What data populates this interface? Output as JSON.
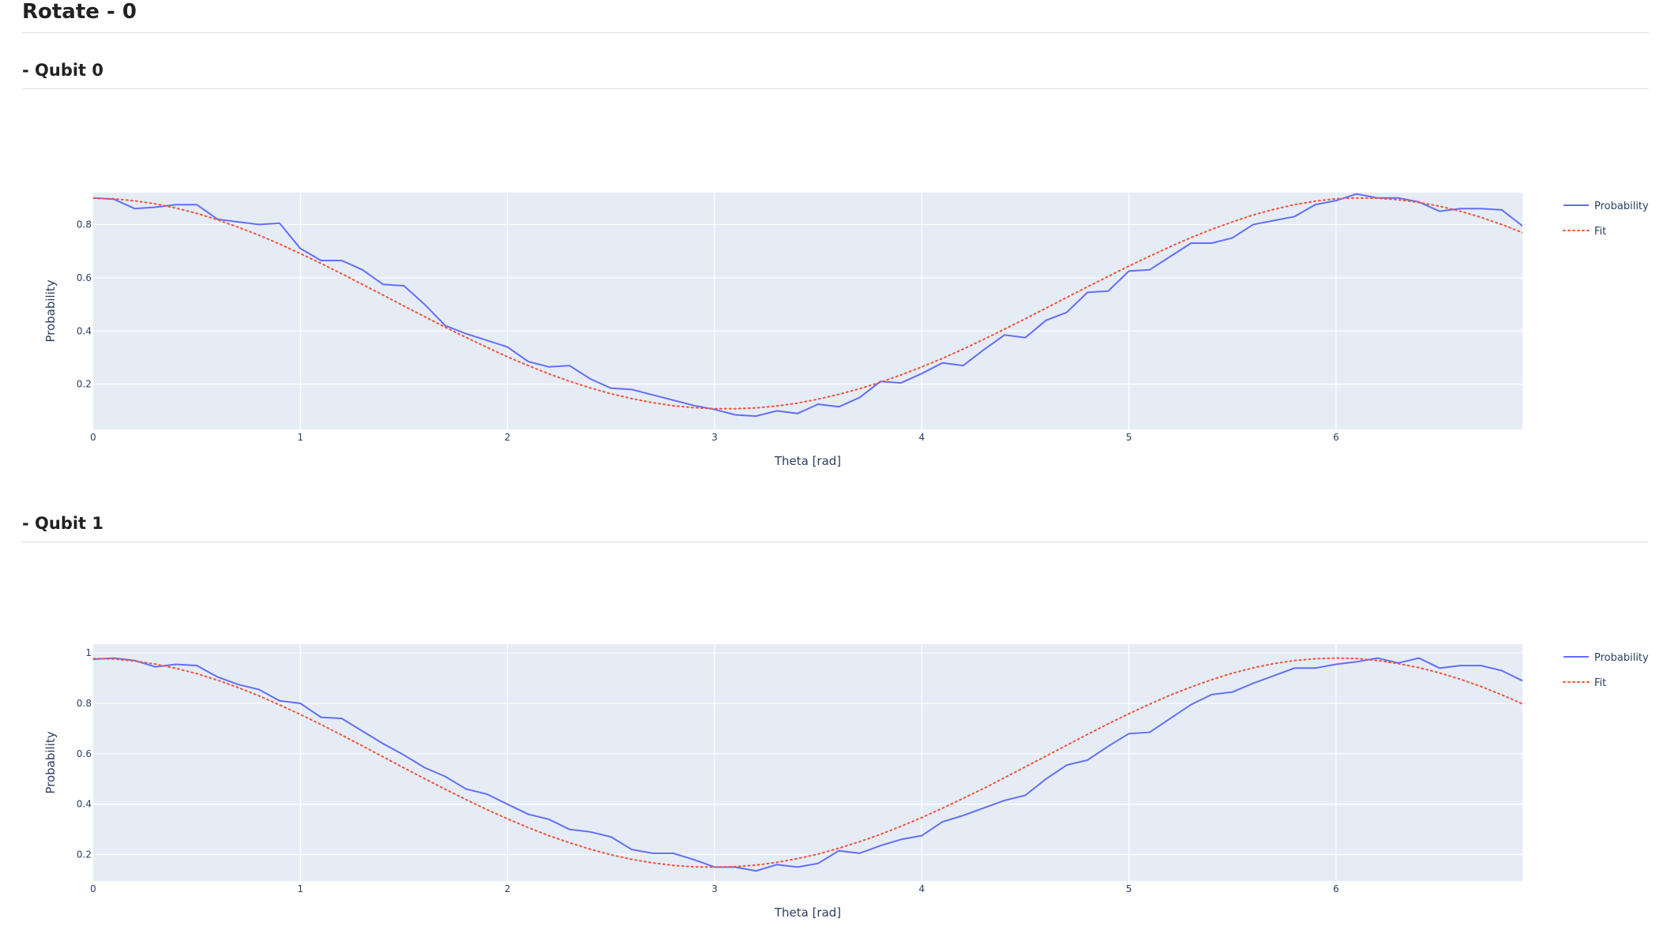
{
  "page": {
    "title": "Rotate - 0"
  },
  "sections": [
    {
      "title": "- Qubit 0"
    },
    {
      "title": "- Qubit 1"
    }
  ],
  "colors": {
    "plot_bg": "#e5ecf6",
    "grid": "#ffffff",
    "probability": "#636efa",
    "fit": "#ef553b",
    "axis_text": "#2a3f5f"
  },
  "chart_data": [
    {
      "type": "line",
      "title": "",
      "xlabel": "Theta [rad]",
      "ylabel": "Probability",
      "xlim": [
        0,
        6.9
      ],
      "ylim": [
        0.03,
        0.92
      ],
      "xticks": [
        0,
        1,
        2,
        3,
        4,
        5,
        6
      ],
      "yticks": [
        0.2,
        0.4,
        0.6,
        0.8
      ],
      "ytick_labels": [
        "0.2",
        "0.4",
        "0.6",
        "0.8"
      ],
      "grid": true,
      "legend_position": "top-right",
      "series": [
        {
          "name": "Probability",
          "style": "solid",
          "x": [
            0,
            0.1,
            0.2,
            0.3,
            0.4,
            0.5,
            0.6,
            0.7,
            0.8,
            0.9,
            1.0,
            1.1,
            1.2,
            1.3,
            1.4,
            1.5,
            1.6,
            1.7,
            1.8,
            1.9,
            2.0,
            2.1,
            2.2,
            2.3,
            2.4,
            2.5,
            2.6,
            2.7,
            2.8,
            2.9,
            3.0,
            3.1,
            3.2,
            3.3,
            3.4,
            3.5,
            3.6,
            3.7,
            3.8,
            3.9,
            4.0,
            4.1,
            4.2,
            4.3,
            4.4,
            4.5,
            4.6,
            4.7,
            4.8,
            4.9,
            5.0,
            5.1,
            5.2,
            5.3,
            5.4,
            5.5,
            5.6,
            5.7,
            5.8,
            5.9,
            6.0,
            6.1,
            6.2,
            6.3,
            6.4,
            6.5,
            6.6,
            6.7,
            6.8,
            6.9
          ],
          "y": [
            0.9,
            0.895,
            0.86,
            0.865,
            0.875,
            0.875,
            0.82,
            0.81,
            0.8,
            0.805,
            0.71,
            0.665,
            0.665,
            0.63,
            0.575,
            0.57,
            0.5,
            0.42,
            0.39,
            0.365,
            0.34,
            0.285,
            0.265,
            0.27,
            0.22,
            0.185,
            0.18,
            0.16,
            0.14,
            0.12,
            0.105,
            0.085,
            0.08,
            0.1,
            0.09,
            0.125,
            0.115,
            0.15,
            0.21,
            0.205,
            0.24,
            0.28,
            0.27,
            0.33,
            0.385,
            0.375,
            0.44,
            0.47,
            0.545,
            0.55,
            0.625,
            0.63,
            0.68,
            0.73,
            0.73,
            0.75,
            0.8,
            0.815,
            0.83,
            0.875,
            0.89,
            0.915,
            0.9,
            0.9,
            0.885,
            0.85,
            0.86,
            0.86,
            0.855,
            0.795
          ]
        },
        {
          "name": "Fit",
          "style": "dotted",
          "x": [
            0,
            0.1,
            0.2,
            0.3,
            0.4,
            0.5,
            0.6,
            0.7,
            0.8,
            0.9,
            1.0,
            1.1,
            1.2,
            1.3,
            1.4,
            1.5,
            1.6,
            1.7,
            1.8,
            1.9,
            2.0,
            2.1,
            2.2,
            2.3,
            2.4,
            2.5,
            2.6,
            2.7,
            2.8,
            2.9,
            3.0,
            3.1,
            3.2,
            3.3,
            3.4,
            3.5,
            3.6,
            3.7,
            3.8,
            3.9,
            4.0,
            4.1,
            4.2,
            4.3,
            4.4,
            4.5,
            4.6,
            4.7,
            4.8,
            4.9,
            5.0,
            5.1,
            5.2,
            5.3,
            5.4,
            5.5,
            5.6,
            5.7,
            5.8,
            5.9,
            6.0,
            6.1,
            6.2,
            6.3,
            6.4,
            6.5,
            6.6,
            6.7,
            6.8,
            6.9
          ],
          "y": [
            0.899,
            0.897,
            0.889,
            0.878,
            0.862,
            0.842,
            0.818,
            0.79,
            0.76,
            0.727,
            0.691,
            0.654,
            0.615,
            0.575,
            0.535,
            0.494,
            0.454,
            0.414,
            0.376,
            0.339,
            0.303,
            0.27,
            0.239,
            0.211,
            0.186,
            0.164,
            0.146,
            0.131,
            0.119,
            0.112,
            0.108,
            0.108,
            0.111,
            0.118,
            0.129,
            0.144,
            0.162,
            0.183,
            0.207,
            0.235,
            0.265,
            0.297,
            0.332,
            0.369,
            0.407,
            0.446,
            0.486,
            0.526,
            0.566,
            0.605,
            0.644,
            0.681,
            0.717,
            0.751,
            0.782,
            0.81,
            0.836,
            0.857,
            0.875,
            0.888,
            0.897,
            0.9,
            0.899,
            0.893,
            0.883,
            0.869,
            0.85,
            0.827,
            0.8,
            0.77
          ]
        }
      ]
    },
    {
      "type": "line",
      "title": "",
      "xlabel": "Theta [rad]",
      "ylabel": "Probability",
      "xlim": [
        0,
        6.9
      ],
      "ylim": [
        0.095,
        1.035
      ],
      "xticks": [
        0,
        1,
        2,
        3,
        4,
        5,
        6
      ],
      "yticks": [
        0.2,
        0.4,
        0.6,
        0.8,
        1.0
      ],
      "ytick_labels": [
        "0.2",
        "0.4",
        "0.6",
        "0.8",
        "1"
      ],
      "grid": true,
      "legend_position": "top-right",
      "series": [
        {
          "name": "Probability",
          "style": "solid",
          "x": [
            0,
            0.1,
            0.2,
            0.3,
            0.4,
            0.5,
            0.6,
            0.7,
            0.8,
            0.9,
            1.0,
            1.1,
            1.2,
            1.3,
            1.4,
            1.5,
            1.6,
            1.7,
            1.8,
            1.9,
            2.0,
            2.1,
            2.2,
            2.3,
            2.4,
            2.5,
            2.6,
            2.7,
            2.8,
            2.9,
            3.0,
            3.1,
            3.2,
            3.3,
            3.4,
            3.5,
            3.6,
            3.7,
            3.8,
            3.9,
            4.0,
            4.1,
            4.2,
            4.3,
            4.4,
            4.5,
            4.6,
            4.7,
            4.8,
            4.9,
            5.0,
            5.1,
            5.2,
            5.3,
            5.4,
            5.5,
            5.6,
            5.7,
            5.8,
            5.9,
            6.0,
            6.1,
            6.2,
            6.3,
            6.4,
            6.5,
            6.6,
            6.7,
            6.8,
            6.9
          ],
          "y": [
            0.975,
            0.98,
            0.97,
            0.945,
            0.955,
            0.95,
            0.905,
            0.875,
            0.855,
            0.81,
            0.8,
            0.745,
            0.74,
            0.69,
            0.64,
            0.595,
            0.545,
            0.51,
            0.46,
            0.44,
            0.4,
            0.36,
            0.34,
            0.3,
            0.29,
            0.27,
            0.22,
            0.205,
            0.205,
            0.18,
            0.15,
            0.15,
            0.135,
            0.16,
            0.15,
            0.165,
            0.215,
            0.205,
            0.235,
            0.26,
            0.275,
            0.33,
            0.355,
            0.385,
            0.415,
            0.435,
            0.5,
            0.555,
            0.575,
            0.63,
            0.68,
            0.685,
            0.74,
            0.795,
            0.835,
            0.845,
            0.88,
            0.91,
            0.94,
            0.94,
            0.955,
            0.965,
            0.98,
            0.96,
            0.98,
            0.94,
            0.95,
            0.95,
            0.93,
            0.89
          ]
        },
        {
          "name": "Fit",
          "style": "dotted",
          "x": [
            0,
            0.1,
            0.2,
            0.3,
            0.4,
            0.5,
            0.6,
            0.7,
            0.8,
            0.9,
            1.0,
            1.1,
            1.2,
            1.3,
            1.4,
            1.5,
            1.6,
            1.7,
            1.8,
            1.9,
            2.0,
            2.1,
            2.2,
            2.3,
            2.4,
            2.5,
            2.6,
            2.7,
            2.8,
            2.9,
            3.0,
            3.1,
            3.2,
            3.3,
            3.4,
            3.5,
            3.6,
            3.7,
            3.8,
            3.9,
            4.0,
            4.1,
            4.2,
            4.3,
            4.4,
            4.5,
            4.6,
            4.7,
            4.8,
            4.9,
            5.0,
            5.1,
            5.2,
            5.3,
            5.4,
            5.5,
            5.6,
            5.7,
            5.8,
            5.9,
            6.0,
            6.1,
            6.2,
            6.3,
            6.4,
            6.5,
            6.6,
            6.7,
            6.8,
            6.9
          ],
          "y": [
            0.978,
            0.976,
            0.968,
            0.956,
            0.939,
            0.918,
            0.892,
            0.863,
            0.83,
            0.794,
            0.756,
            0.716,
            0.674,
            0.631,
            0.588,
            0.544,
            0.501,
            0.459,
            0.418,
            0.379,
            0.342,
            0.307,
            0.275,
            0.247,
            0.221,
            0.199,
            0.181,
            0.167,
            0.157,
            0.151,
            0.15,
            0.152,
            0.158,
            0.169,
            0.184,
            0.202,
            0.225,
            0.251,
            0.28,
            0.312,
            0.347,
            0.384,
            0.423,
            0.463,
            0.505,
            0.548,
            0.591,
            0.634,
            0.677,
            0.719,
            0.759,
            0.797,
            0.833,
            0.865,
            0.894,
            0.92,
            0.941,
            0.958,
            0.97,
            0.977,
            0.98,
            0.978,
            0.97,
            0.958,
            0.942,
            0.921,
            0.896,
            0.867,
            0.834,
            0.798
          ]
        }
      ]
    }
  ]
}
